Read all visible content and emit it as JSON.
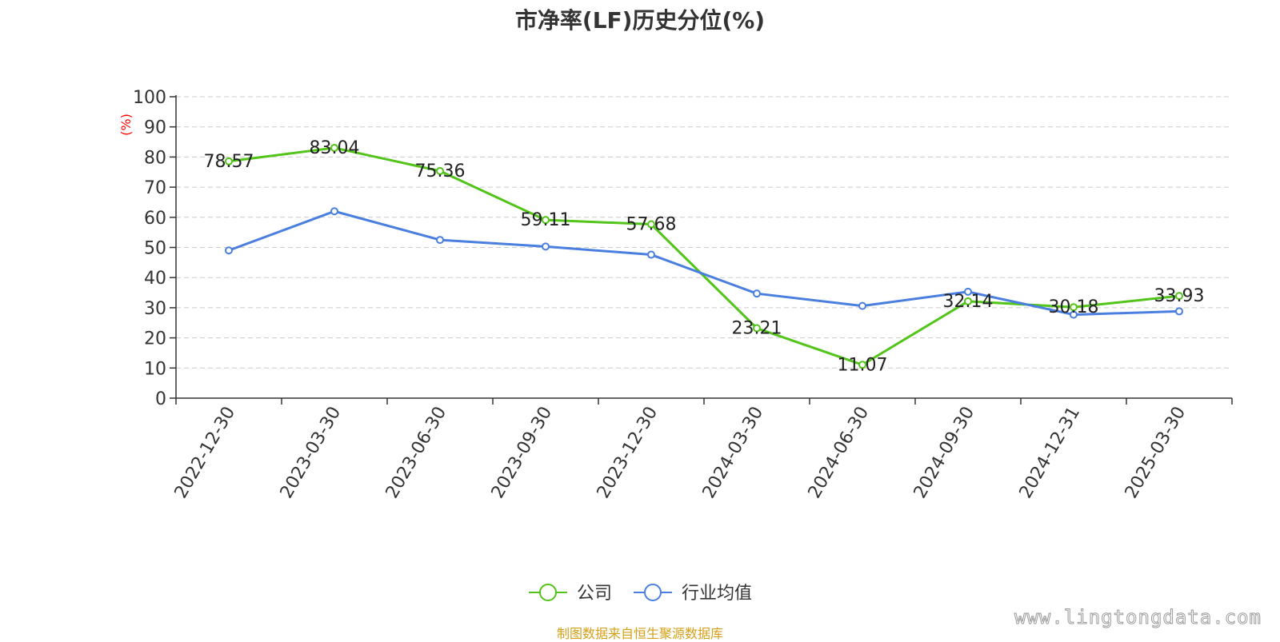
{
  "chart_data": {
    "type": "line",
    "title": "市净率(LF)历史分位(%)",
    "ylabel": "(%)",
    "xlabel": "",
    "ylim": [
      0,
      100
    ],
    "ytick_step": 10,
    "grid": true,
    "legend_position": "bottom-center",
    "x": [
      "2022-12-30",
      "2023-03-30",
      "2023-06-30",
      "2023-09-30",
      "2023-12-30",
      "2024-03-30",
      "2024-06-30",
      "2024-09-30",
      "2024-12-31",
      "2025-03-30"
    ],
    "series": [
      {
        "name": "公司",
        "color": "#52c41a",
        "values": [
          78.57,
          83.04,
          75.36,
          59.11,
          57.68,
          23.21,
          11.07,
          32.14,
          30.18,
          33.93
        ],
        "labels": [
          "78.57",
          "83.04",
          "75.36",
          "59.11",
          "57.68",
          "23.21",
          "11.07",
          "32.14",
          "30.18",
          "33.93"
        ]
      },
      {
        "name": "行业均值",
        "color": "#4a7fe0",
        "values": [
          49.0,
          62.0,
          52.5,
          50.3,
          47.6,
          34.7,
          30.6,
          35.3,
          27.7,
          28.8
        ]
      }
    ]
  },
  "footer": {
    "source": "制图数据来自恒生聚源数据库",
    "watermark": "www.lingtongdata.com"
  },
  "colors": {
    "axis": "#333333",
    "grid": "#cccccc",
    "ylabel": "#ff0000",
    "source": "#d4a017"
  }
}
